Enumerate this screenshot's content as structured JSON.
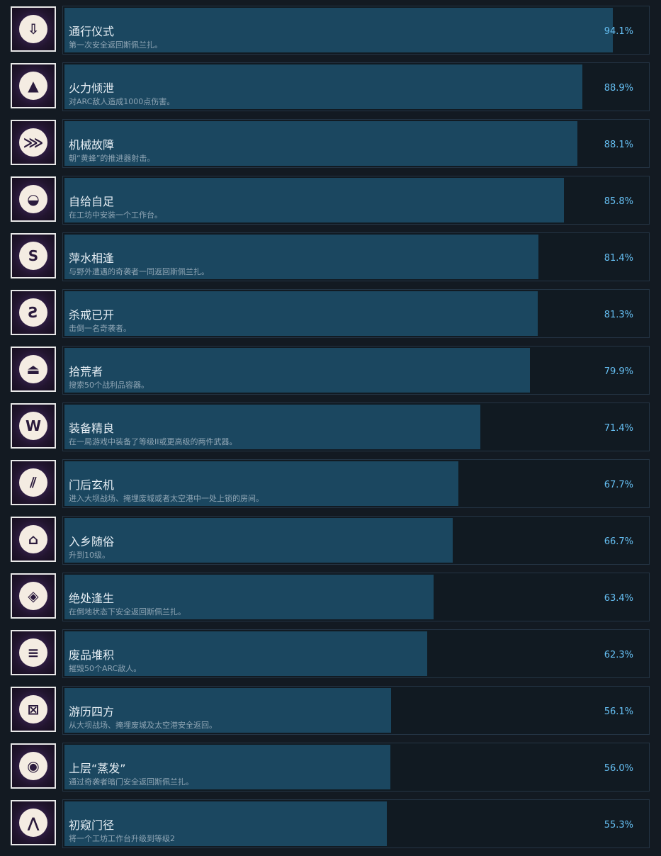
{
  "achievements": [
    {
      "title": "通行仪式",
      "desc": "第一次安全返回斯佩兰扎。",
      "percent": "94.1%",
      "value": 94.1,
      "icon": "⇩"
    },
    {
      "title": "火力倾泄",
      "desc": "对ARC敌人造成1000点伤害。",
      "percent": "88.9%",
      "value": 88.9,
      "icon": "▲"
    },
    {
      "title": "机械故障",
      "desc": "朝“黄蜂”的推进器射击。",
      "percent": "88.1%",
      "value": 88.1,
      "icon": "⋙"
    },
    {
      "title": "自给自足",
      "desc": "在工坊中安装一个工作台。",
      "percent": "85.8%",
      "value": 85.8,
      "icon": "◒"
    },
    {
      "title": "萍水相逢",
      "desc": "与野外遭遇的奇袭者一同返回斯佩兰扎。",
      "percent": "81.4%",
      "value": 81.4,
      "icon": "S"
    },
    {
      "title": "杀戒已开",
      "desc": "击倒一名奇袭者。",
      "percent": "81.3%",
      "value": 81.3,
      "icon": "Ƨ"
    },
    {
      "title": "拾荒者",
      "desc": "搜索50个战利品容器。",
      "percent": "79.9%",
      "value": 79.9,
      "icon": "⏏"
    },
    {
      "title": "装备精良",
      "desc": "在一局游戏中装备了等级II或更高级的两件武器。",
      "percent": "71.4%",
      "value": 71.4,
      "icon": "W"
    },
    {
      "title": "门后玄机",
      "desc": "进入大坝战场、掩埋废城或者太空港中一处上锁的房间。",
      "percent": "67.7%",
      "value": 67.7,
      "icon": "⫽"
    },
    {
      "title": "入乡随俗",
      "desc": "升到10级。",
      "percent": "66.7%",
      "value": 66.7,
      "icon": "⌂"
    },
    {
      "title": "绝处逢生",
      "desc": "在倒地状态下安全返回斯佩兰扎。",
      "percent": "63.4%",
      "value": 63.4,
      "icon": "◈"
    },
    {
      "title": "废品堆积",
      "desc": "摧毁50个ARC敌人。",
      "percent": "62.3%",
      "value": 62.3,
      "icon": "≡"
    },
    {
      "title": "游历四方",
      "desc": "从大坝战场、掩埋废城及太空港安全返回。",
      "percent": "56.1%",
      "value": 56.1,
      "icon": "⊠"
    },
    {
      "title": "上层“蒸发”",
      "desc": "通过奇袭者暗门安全返回斯佩兰扎。",
      "percent": "56.0%",
      "value": 56.0,
      "icon": "◉"
    },
    {
      "title": "初窥门径",
      "desc": "将一个工坊工作台升级到等级2",
      "percent": "55.3%",
      "value": 55.3,
      "icon": "⋀"
    }
  ]
}
